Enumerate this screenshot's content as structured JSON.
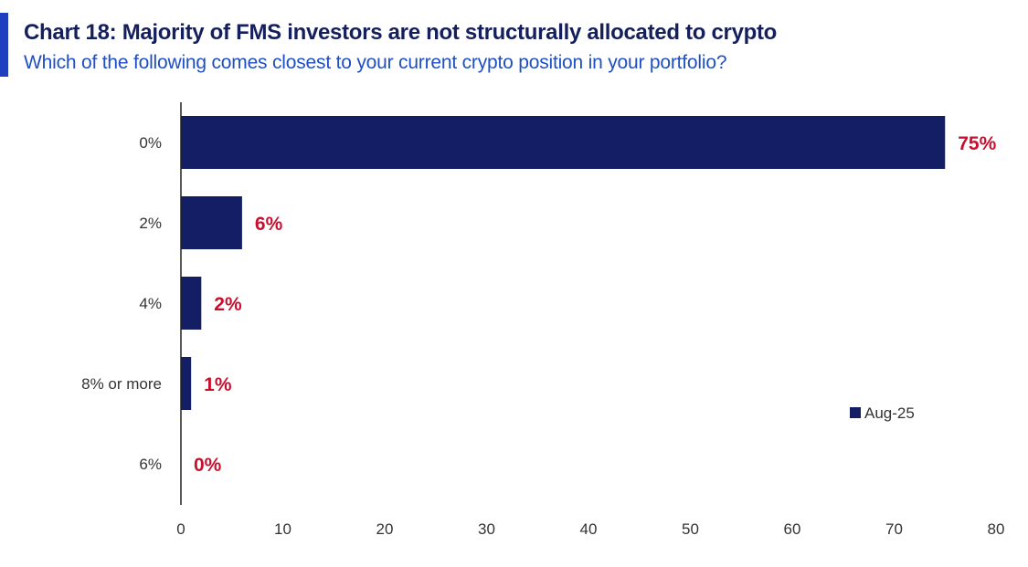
{
  "header": {
    "title": "Chart 18: Majority of FMS investors are not structurally allocated to crypto",
    "subtitle": "Which of the following comes closest to your current crypto position in your portfolio?"
  },
  "colors": {
    "accent": "#1f3fbf",
    "title": "#141f5c",
    "subtitle": "#1f4fc2",
    "bar": "#141e64",
    "data_label": "#c8102e"
  },
  "chart_data": {
    "type": "bar",
    "orientation": "horizontal",
    "categories": [
      "0%",
      "2%",
      "4%",
      "8% or more",
      "6%"
    ],
    "series": [
      {
        "name": "Aug-25",
        "values": [
          75,
          6,
          2,
          1,
          0
        ],
        "data_labels": [
          "75%",
          "6%",
          "2%",
          "1%",
          "0%"
        ]
      }
    ],
    "xlim": [
      0,
      80
    ],
    "xticks": [
      0,
      10,
      20,
      30,
      40,
      50,
      60,
      70,
      80
    ],
    "xlabel": "",
    "ylabel": "",
    "grid": false,
    "legend": {
      "placement": "right",
      "entries": [
        "Aug-25"
      ]
    }
  }
}
